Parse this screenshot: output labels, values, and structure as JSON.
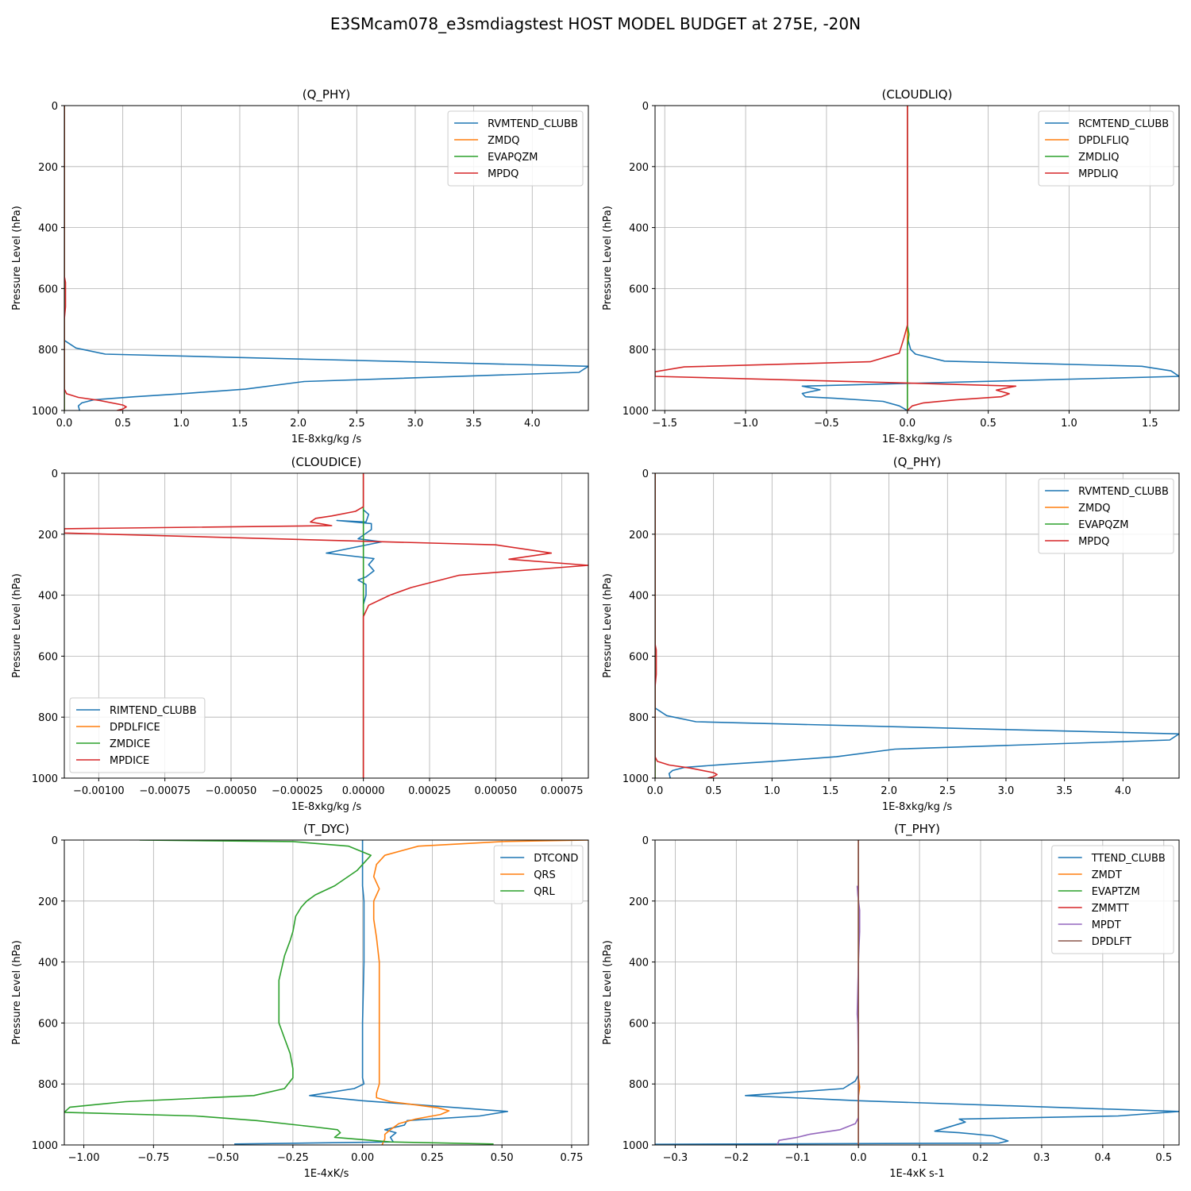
{
  "figure_title": "E3SMcam078_e3smdiagstest HOST MODEL BUDGET at 275E, -20N",
  "colors": {
    "C0": "#1f77b4",
    "C1": "#ff7f0e",
    "C2": "#2ca02c",
    "C3": "#d62728",
    "C4": "#9467bd",
    "C5": "#8c564b"
  },
  "chart_data": [
    {
      "type": "line",
      "title": "(Q_PHY)",
      "xlabel": "1E-8xkg/kg /s",
      "ylabel": "Pressure Level (hPa)",
      "xlim": [
        0,
        4.48
      ],
      "ylim": [
        1000,
        0
      ],
      "xticks": [
        0,
        0.5,
        1,
        1.5,
        2,
        2.5,
        3,
        3.5,
        4
      ],
      "xtick_labels": [
        "0.0",
        "0.5",
        "1.0",
        "1.5",
        "2.0",
        "2.5",
        "3.0",
        "3.5",
        "4.0"
      ],
      "yticks": [
        0,
        200,
        400,
        600,
        800,
        1000
      ],
      "ytick_labels": [
        "0",
        "200",
        "400",
        "600",
        "800",
        "1000"
      ],
      "grid": true,
      "legend": "upper-right",
      "series": [
        {
          "name": "RVMTEND_CLUBB",
          "color": "#1f77b4",
          "x": [
            0,
            0,
            0.1,
            0.35,
            4.48,
            4.4,
            2.05,
            1.55,
            1.0,
            0.6,
            0.35,
            0.25,
            0.15,
            0.12,
            0.13
          ],
          "y": [
            0,
            770,
            795,
            815,
            855,
            875,
            905,
            930,
            945,
            955,
            962,
            965,
            975,
            985,
            1000
          ]
        },
        {
          "name": "ZMDQ",
          "color": "#ff7f0e",
          "x": [
            0,
            0
          ],
          "y": [
            0,
            1000
          ]
        },
        {
          "name": "EVAPQZM",
          "color": "#2ca02c",
          "x": [
            0,
            0
          ],
          "y": [
            0,
            1000
          ]
        },
        {
          "name": "MPDQ",
          "color": "#d62728",
          "x": [
            0,
            0,
            0.01,
            0.01,
            0,
            0,
            0.02,
            0.12,
            0.3,
            0.5,
            0.53,
            0.5,
            0.45
          ],
          "y": [
            0,
            560,
            580,
            660,
            700,
            930,
            945,
            957,
            967,
            982,
            988,
            995,
            1000
          ]
        }
      ]
    },
    {
      "type": "line",
      "title": "(CLOUDLIQ)",
      "xlabel": "1E-8xkg/kg /s",
      "ylabel": "Pressure Level (hPa)",
      "xlim": [
        -1.56,
        1.68
      ],
      "ylim": [
        1000,
        0
      ],
      "xticks": [
        -1.5,
        -1,
        -0.5,
        0,
        0.5,
        1,
        1.5
      ],
      "xtick_labels": [
        "−1.5",
        "−1.0",
        "−0.5",
        "0.0",
        "0.5",
        "1.0",
        "1.5"
      ],
      "yticks": [
        0,
        200,
        400,
        600,
        800,
        1000
      ],
      "ytick_labels": [
        "0",
        "200",
        "400",
        "600",
        "800",
        "1000"
      ],
      "grid": true,
      "legend": "upper-right",
      "series": [
        {
          "name": "RCMTEND_CLUBB",
          "color": "#1f77b4",
          "x": [
            0,
            0,
            0.02,
            0.05,
            0.23,
            1.45,
            1.63,
            1.68,
            -0.65,
            -0.54,
            -0.65,
            -0.63,
            -0.45,
            -0.15,
            -0.05,
            0
          ],
          "y": [
            0,
            760,
            800,
            815,
            838,
            855,
            870,
            888,
            920,
            932,
            944,
            955,
            960,
            970,
            985,
            1000
          ]
        },
        {
          "name": "DPDLFLIQ",
          "color": "#ff7f0e",
          "x": [
            0,
            0
          ],
          "y": [
            0,
            1000
          ]
        },
        {
          "name": "ZMDLIQ",
          "color": "#2ca02c",
          "x": [
            0,
            0,
            0.01,
            0,
            0
          ],
          "y": [
            0,
            720,
            750,
            790,
            1000
          ]
        },
        {
          "name": "MPDLIQ",
          "color": "#d62728",
          "x": [
            0,
            0,
            -0.02,
            -0.05,
            -0.23,
            -1.38,
            -1.56,
            -1.56,
            0,
            0.67,
            0.55,
            0.63,
            0.58,
            0.3,
            0.1,
            0.03,
            0
          ],
          "y": [
            0,
            720,
            760,
            812,
            840,
            857,
            873,
            888,
            910,
            920,
            933,
            945,
            955,
            965,
            975,
            985,
            1000
          ]
        }
      ]
    },
    {
      "type": "line",
      "title": "(CLOUDICE)",
      "xlabel": "1E-8xkg/kg /s",
      "ylabel": "Pressure Level (hPa)",
      "xlim": [
        -0.00113,
        0.00085
      ],
      "ylim": [
        1000,
        0
      ],
      "xticks": [
        -0.001,
        -0.00075,
        -0.0005,
        -0.00025,
        0,
        0.00025,
        0.0005,
        0.00075
      ],
      "xtick_labels": [
        "−0.00100",
        "−0.00075",
        "−0.00050",
        "−0.00025",
        "0.00000",
        "0.00025",
        "0.00050",
        "0.00075"
      ],
      "yticks": [
        0,
        200,
        400,
        600,
        800,
        1000
      ],
      "ytick_labels": [
        "0",
        "200",
        "400",
        "600",
        "800",
        "1000"
      ],
      "grid": true,
      "legend": "lower-left",
      "series": [
        {
          "name": "RIMTEND_CLUBB",
          "color": "#1f77b4",
          "x": [
            0,
            0,
            2e-05,
            1e-05,
            -0.0001,
            3e-05,
            3e-05,
            -2e-05,
            7e-05,
            -0.00014,
            4e-05,
            2e-05,
            4e-05,
            1e-05,
            -2e-05,
            1e-05,
            1e-05,
            1e-05,
            0,
            0,
            0
          ],
          "y": [
            0,
            120,
            135,
            160,
            155,
            165,
            185,
            215,
            225,
            262,
            280,
            300,
            320,
            340,
            350,
            365,
            380,
            400,
            430,
            460,
            1000
          ]
        },
        {
          "name": "DPDLFICE",
          "color": "#ff7f0e",
          "x": [
            0,
            0
          ],
          "y": [
            0,
            1000
          ]
        },
        {
          "name": "ZMDICE",
          "color": "#2ca02c",
          "x": [
            0,
            0
          ],
          "y": [
            0,
            1000
          ]
        },
        {
          "name": "MPDICE",
          "color": "#d62728",
          "x": [
            0,
            0,
            -3e-05,
            -0.00012,
            -0.00018,
            -0.0002,
            -0.00012,
            -0.00113,
            -0.00113,
            0.0005,
            0.00071,
            0.00055,
            0.00085,
            0.00036,
            0.00018,
            0.0001,
            2e-05,
            0,
            0
          ],
          "y": [
            0,
            110,
            125,
            140,
            148,
            160,
            172,
            182,
            196,
            235,
            262,
            282,
            302,
            335,
            375,
            400,
            433,
            470,
            1000
          ]
        }
      ]
    },
    {
      "type": "line",
      "title": "(Q_PHY)",
      "xlabel": "1E-8xkg/kg /s",
      "ylabel": "Pressure Level (hPa)",
      "xlim": [
        0,
        4.48
      ],
      "ylim": [
        1000,
        0
      ],
      "xticks": [
        0,
        0.5,
        1,
        1.5,
        2,
        2.5,
        3,
        3.5,
        4
      ],
      "xtick_labels": [
        "0.0",
        "0.5",
        "1.0",
        "1.5",
        "2.0",
        "2.5",
        "3.0",
        "3.5",
        "4.0"
      ],
      "yticks": [
        0,
        200,
        400,
        600,
        800,
        1000
      ],
      "ytick_labels": [
        "0",
        "200",
        "400",
        "600",
        "800",
        "1000"
      ],
      "grid": true,
      "legend": "upper-right",
      "series": [
        {
          "name": "RVMTEND_CLUBB",
          "color": "#1f77b4",
          "x": [
            0,
            0,
            0.1,
            0.35,
            4.48,
            4.4,
            2.05,
            1.55,
            1.0,
            0.6,
            0.35,
            0.25,
            0.15,
            0.12,
            0.13
          ],
          "y": [
            0,
            770,
            795,
            815,
            855,
            875,
            905,
            930,
            945,
            955,
            962,
            965,
            975,
            985,
            1000
          ]
        },
        {
          "name": "ZMDQ",
          "color": "#ff7f0e",
          "x": [
            0,
            0
          ],
          "y": [
            0,
            1000
          ]
        },
        {
          "name": "EVAPQZM",
          "color": "#2ca02c",
          "x": [
            0,
            0
          ],
          "y": [
            0,
            1000
          ]
        },
        {
          "name": "MPDQ",
          "color": "#d62728",
          "x": [
            0,
            0,
            0.01,
            0.01,
            0,
            0,
            0.02,
            0.12,
            0.3,
            0.5,
            0.53,
            0.5,
            0.45
          ],
          "y": [
            0,
            560,
            580,
            660,
            700,
            930,
            945,
            957,
            967,
            982,
            988,
            995,
            1000
          ]
        }
      ]
    },
    {
      "type": "line",
      "title": "(T_DYC)",
      "xlabel": "1E-4xK/s",
      "ylabel": "Pressure Level (hPa)",
      "xlim": [
        -1.07,
        0.81
      ],
      "ylim": [
        1000,
        0
      ],
      "xticks": [
        -1,
        -0.75,
        -0.5,
        -0.25,
        0,
        0.25,
        0.5,
        0.75
      ],
      "xtick_labels": [
        "−1.00",
        "−0.75",
        "−0.50",
        "−0.25",
        "0.00",
        "0.25",
        "0.50",
        "0.75"
      ],
      "yticks": [
        0,
        200,
        400,
        600,
        800,
        1000
      ],
      "ytick_labels": [
        "0",
        "200",
        "400",
        "600",
        "800",
        "1000"
      ],
      "grid": true,
      "legend": "upper-right",
      "series": [
        {
          "name": "DTCOND",
          "color": "#1f77b4",
          "x": [
            0,
            0,
            0.005,
            0.005,
            0,
            0,
            0.005,
            -0.03,
            -0.19,
            0,
            0.52,
            0.42,
            0.16,
            0.15,
            0.08,
            0.12,
            0.1,
            0.11,
            -0.46
          ],
          "y": [
            0,
            150,
            200,
            400,
            600,
            780,
            800,
            815,
            838,
            855,
            890,
            905,
            920,
            935,
            950,
            960,
            975,
            990,
            997
          ]
        },
        {
          "name": "QRS",
          "color": "#ff7f0e",
          "x": [
            0.81,
            0.5,
            0.2,
            0.08,
            0.05,
            0.04,
            0.06,
            0.04,
            0.04,
            0.05,
            0.06,
            0.06,
            0.06,
            0.06,
            0.06,
            0.05,
            0.05,
            0.1,
            0.27,
            0.31,
            0.28,
            0.19,
            0.13,
            0.1,
            0.08,
            0.08,
            0.07
          ],
          "y": [
            0,
            5,
            20,
            50,
            80,
            120,
            160,
            200,
            260,
            320,
            400,
            500,
            600,
            700,
            800,
            830,
            845,
            858,
            878,
            888,
            900,
            915,
            930,
            950,
            965,
            980,
            1000
          ]
        },
        {
          "name": "QRL",
          "color": "#2ca02c",
          "x": [
            -0.8,
            -0.25,
            -0.05,
            0.03,
            -0.02,
            -0.1,
            -0.17,
            -0.2,
            -0.22,
            -0.24,
            -0.25,
            -0.26,
            -0.28,
            -0.29,
            -0.3,
            -0.3,
            -0.3,
            -0.3,
            -0.28,
            -0.26,
            -0.25,
            -0.25,
            -0.28,
            -0.39,
            -0.85,
            -1.05,
            -1.07,
            -0.6,
            -0.38,
            -0.18,
            -0.09,
            -0.08,
            -0.1,
            0.1,
            0.47
          ],
          "y": [
            0,
            5,
            20,
            50,
            100,
            150,
            180,
            200,
            220,
            250,
            300,
            330,
            380,
            420,
            460,
            500,
            550,
            600,
            650,
            700,
            750,
            780,
            815,
            838,
            858,
            876,
            893,
            905,
            920,
            940,
            950,
            960,
            975,
            990,
            997
          ]
        }
      ]
    },
    {
      "type": "line",
      "title": "(T_PHY)",
      "xlabel": "1E-4xK s-1",
      "ylabel": "Pressure Level (hPa)",
      "xlim": [
        -0.333,
        0.525
      ],
      "ylim": [
        1000,
        0
      ],
      "xticks": [
        -0.3,
        -0.2,
        -0.1,
        0,
        0.1,
        0.2,
        0.3,
        0.4,
        0.5
      ],
      "xtick_labels": [
        "−0.3",
        "−0.2",
        "−0.1",
        "0.0",
        "0.1",
        "0.2",
        "0.3",
        "0.4",
        "0.5"
      ],
      "yticks": [
        0,
        200,
        400,
        600,
        800,
        1000
      ],
      "ytick_labels": [
        "0",
        "200",
        "400",
        "600",
        "800",
        "1000"
      ],
      "grid": true,
      "legend": "upper-right",
      "series": [
        {
          "name": "TTEND_CLUBB",
          "color": "#1f77b4",
          "x": [
            0,
            0,
            -0.005,
            -0.025,
            -0.185,
            0,
            0.525,
            0.425,
            0.165,
            0.175,
            0.125,
            0.165,
            0.22,
            0.245,
            0.23,
            -0.333
          ],
          "y": [
            0,
            770,
            790,
            815,
            838,
            855,
            890,
            905,
            915,
            925,
            955,
            960,
            970,
            987,
            994,
            998
          ]
        },
        {
          "name": "ZMDT",
          "color": "#ff7f0e",
          "x": [
            0,
            0,
            0.002,
            0,
            0
          ],
          "y": [
            0,
            780,
            810,
            840,
            1000
          ]
        },
        {
          "name": "EVAPTZM",
          "color": "#2ca02c",
          "x": [
            0,
            0
          ],
          "y": [
            0,
            1000
          ]
        },
        {
          "name": "ZMMTT",
          "color": "#d62728",
          "x": [
            0,
            0
          ],
          "y": [
            0,
            1000
          ]
        },
        {
          "name": "MPDT",
          "color": "#9467bd",
          "x": [
            -0.002,
            -0.001,
            0.002,
            0.002,
            0.001,
            0,
            -0.002,
            -0.001,
            0,
            0,
            0,
            -0.005,
            -0.03,
            -0.08,
            -0.1,
            -0.13,
            -0.133
          ],
          "y": [
            150,
            180,
            230,
            300,
            350,
            400,
            570,
            600,
            750,
            900,
            910,
            930,
            950,
            965,
            975,
            985,
            1000
          ]
        },
        {
          "name": "DPDLFT",
          "color": "#8c564b",
          "x": [
            0,
            0
          ],
          "y": [
            0,
            1000
          ]
        }
      ]
    }
  ]
}
